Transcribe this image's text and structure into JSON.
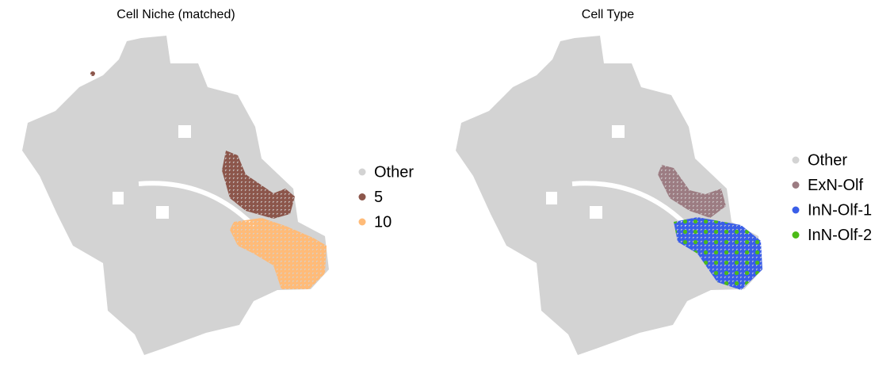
{
  "panels": [
    {
      "title": "Cell Niche (matched)",
      "legend": [
        {
          "label": "Other",
          "color": "#d3d3d3"
        },
        {
          "label": "5",
          "color": "#8c564b"
        },
        {
          "label": "10",
          "color": "#ffbb78"
        }
      ]
    },
    {
      "title": "Cell Type",
      "legend": [
        {
          "label": "Other",
          "color": "#d3d3d3"
        },
        {
          "label": "ExN-Olf",
          "color": "#9c7c82"
        },
        {
          "label": "InN-Olf-1",
          "color": "#3a5ee8"
        },
        {
          "label": "InN-Olf-2",
          "color": "#4cbb17"
        }
      ]
    }
  ]
}
